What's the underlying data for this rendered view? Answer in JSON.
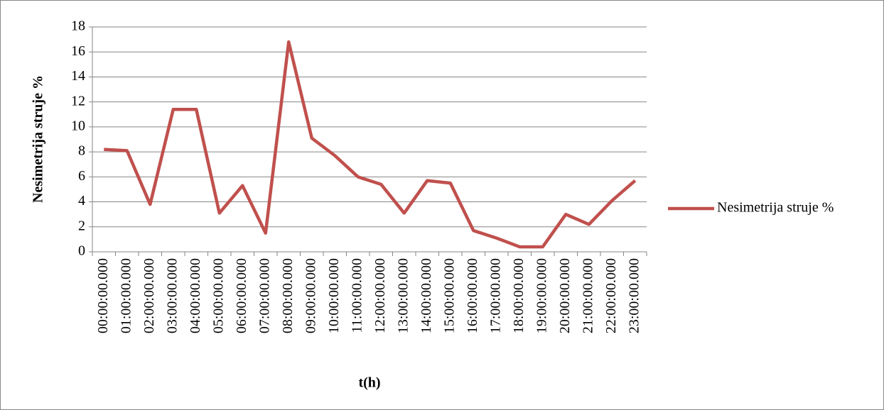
{
  "chart_data": {
    "type": "line",
    "x_label": "t(h)",
    "y_label": "Nesimetrija struje %",
    "categories": [
      "00:00:00.000",
      "01:00:00.000",
      "02:00:00.000",
      "03:00:00.000",
      "04:00:00.000",
      "05:00:00.000",
      "06:00:00.000",
      "07:00:00.000",
      "08:00:00.000",
      "09:00:00.000",
      "10:00:00.000",
      "11:00:00.000",
      "12:00:00.000",
      "13:00:00.000",
      "14:00:00.000",
      "15:00:00.000",
      "16:00:00.000",
      "17:00:00.000",
      "18:00:00.000",
      "19:00:00.000",
      "20:00:00.000",
      "21:00:00.000",
      "22:00:00.000",
      "23:00:00.000"
    ],
    "series": [
      {
        "name": "Nesimetrija struje %",
        "color": "#c0504d",
        "values": [
          8.2,
          8.1,
          3.8,
          11.4,
          11.4,
          3.1,
          5.3,
          1.5,
          16.8,
          9.1,
          7.7,
          6.0,
          5.4,
          3.1,
          5.7,
          5.5,
          1.7,
          1.1,
          0.4,
          0.4,
          3.0,
          2.2,
          4.1,
          5.7
        ]
      }
    ],
    "ylim": [
      0,
      18
    ],
    "yticks": [
      0,
      2,
      4,
      6,
      8,
      10,
      12,
      14,
      16,
      18
    ],
    "grid": true,
    "legend": "right"
  }
}
